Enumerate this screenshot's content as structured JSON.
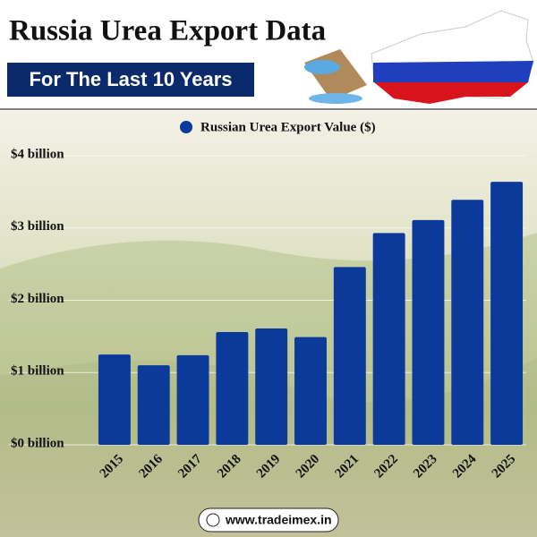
{
  "chart_data": {
    "type": "bar",
    "title": "Russia Urea Export Data",
    "subtitle": "For The Last 10 Years",
    "categories": [
      "2015",
      "2016",
      "2017",
      "2018",
      "2019",
      "2020",
      "2021",
      "2022",
      "2023",
      "2024",
      "2025"
    ],
    "series": [
      {
        "name": "Russian Urea Export Value ($)",
        "color": "#0b3a9a",
        "values": [
          1.25,
          1.1,
          1.24,
          1.56,
          1.61,
          1.49,
          2.46,
          2.93,
          3.11,
          3.39,
          3.64
        ]
      }
    ],
    "ylim": [
      0,
      4
    ],
    "yticks": [
      {
        "value": 0,
        "label": "$0 billion"
      },
      {
        "value": 1,
        "label": "$1 billion"
      },
      {
        "value": 2,
        "label": "$2 billion"
      },
      {
        "value": 3,
        "label": "$3 billion"
      },
      {
        "value": 4,
        "label": "$4 billion"
      }
    ],
    "grid": true,
    "source": "www.tradeimex.in"
  }
}
